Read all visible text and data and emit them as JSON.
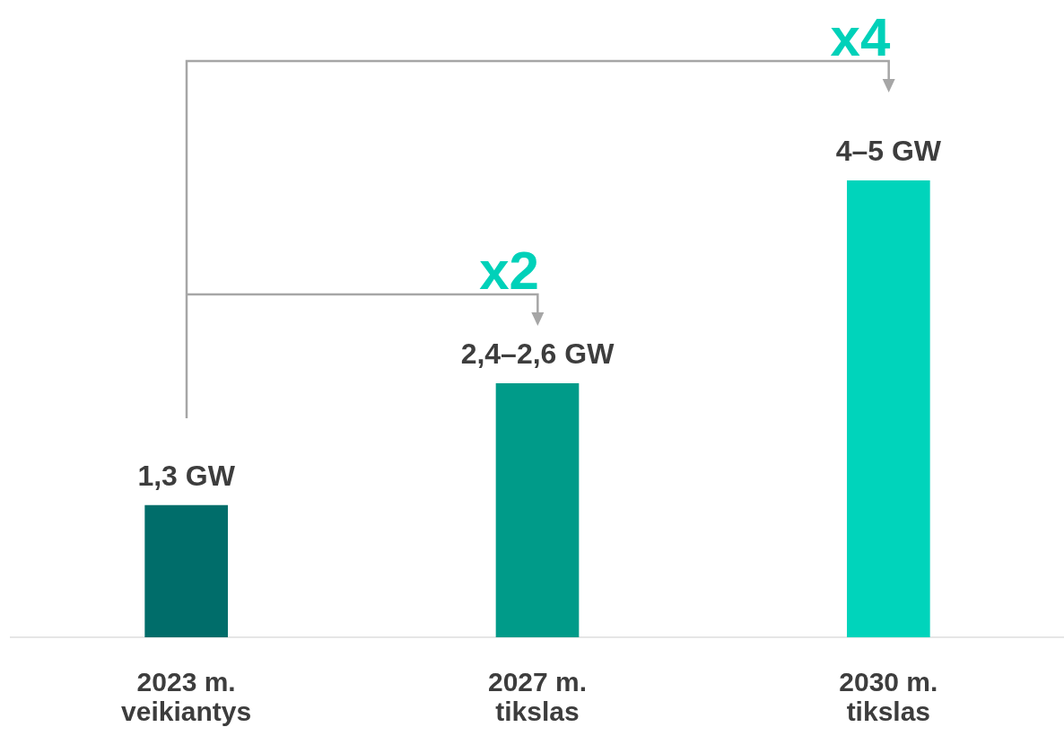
{
  "chart_data": {
    "type": "bar",
    "categories": [
      "2023 m. veikiantys",
      "2027 m. tikslas",
      "2030 m. tikslas"
    ],
    "values": [
      1.3,
      2.5,
      4.5
    ],
    "colors": [
      "#006d6a",
      "#009b89",
      "#00d4bb"
    ],
    "tick_labels": "x",
    "value_labels": [
      "1,3 GW",
      "2,4–2,6 GW",
      "4–5 GW"
    ],
    "annotations": [
      "x2",
      "x4"
    ]
  }
}
